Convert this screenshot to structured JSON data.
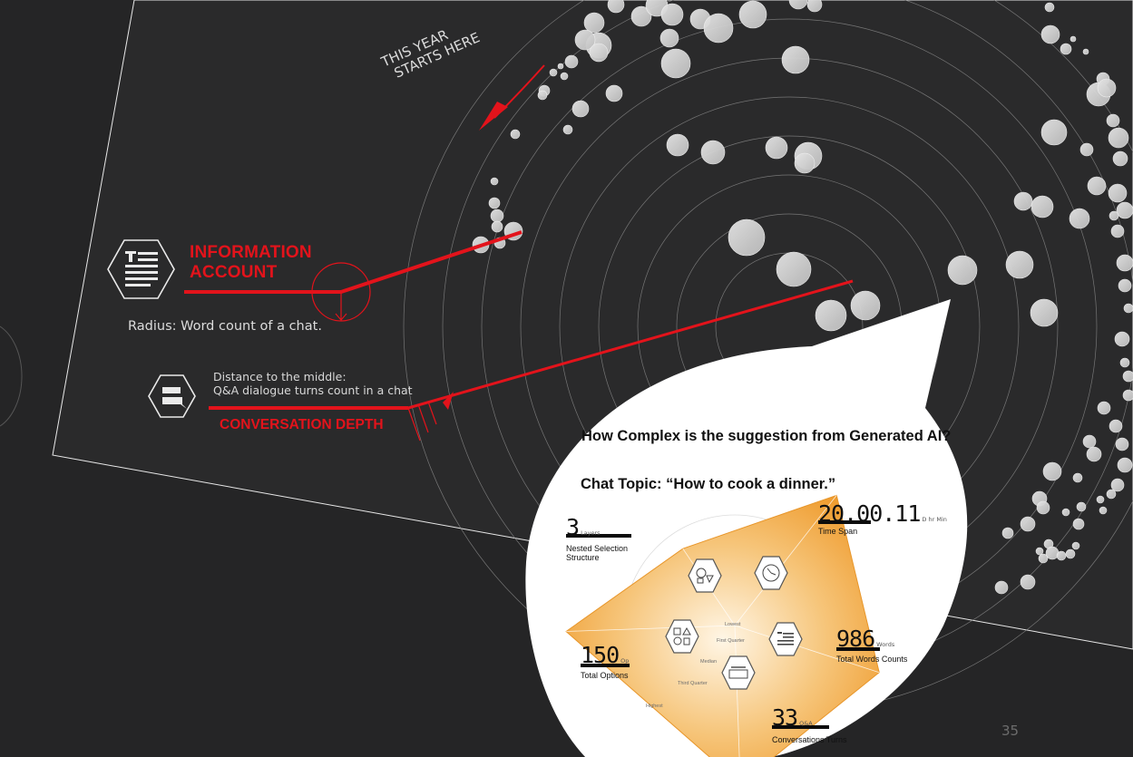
{
  "slide": {
    "page_number": "35",
    "start_note": [
      "THIS YEAR",
      "STARTS HERE"
    ],
    "legend": {
      "information_title_line1": "INFORMATION",
      "information_title_line2": "ACCOUNT",
      "radius_note": "Radius: Word count of a chat.",
      "distance_note_line1": "Distance to the middle:",
      "distance_note_line2": "Q&A dialogue turns count in a chat",
      "conversation_title": "CONVERSATION DEPTH"
    },
    "callout": {
      "question": "How Complex is the suggestion from Generated AI?",
      "topic": "Chat Topic: “How to cook a dinner.”"
    },
    "colors": {
      "background": "#252526",
      "accent_red": "#e3131b",
      "bubble": "#cfcfcf",
      "radar_fill": "#f0a43e",
      "callout_bg": "#ffffff"
    },
    "icons": [
      "text-document-icon",
      "chat-bubble-icon",
      "clock-icon",
      "gear-shapes-icon",
      "shapes-icon",
      "stacked-layers-icon"
    ]
  },
  "chart_data": [
    {
      "type": "scatter",
      "description": "",
      "ring_count": 9,
      "bubbles_visible": 100
    },
    {
      "type": "radar",
      "title": "How Complex is the suggestion from Generated AI?",
      "subtitle": "Chat Topic: “How to cook a dinner.”",
      "levels": [
        "Lowest",
        "First Quarter",
        "Median",
        "Third Quarter",
        "Highest"
      ],
      "axes": [
        {
          "key": "time_span",
          "value_text": "20.00.11",
          "unit_text": "D  hr  Min",
          "label": "Time Span",
          "value": 0.98
        },
        {
          "key": "total_words",
          "value_text": "986",
          "unit_text": "Words",
          "label": "Total Words Counts",
          "value": 0.9
        },
        {
          "key": "conversation_turns",
          "value_text": "33",
          "unit_text": "Q&A",
          "label": "Conversations Turns",
          "value": 0.94
        },
        {
          "key": "total_options",
          "value_text": "150",
          "unit_text": "Op",
          "label": "Total Options",
          "value": 1.0
        },
        {
          "key": "nested_structure",
          "value_text": "3",
          "unit_text": "Layers",
          "label": "Nested Selection Structure",
          "value": 0.55
        }
      ]
    }
  ]
}
